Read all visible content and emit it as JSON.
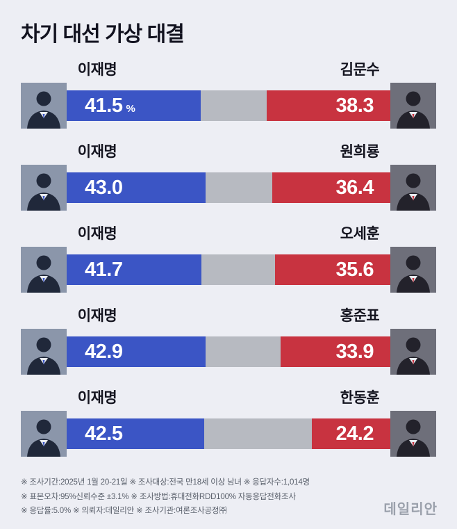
{
  "chart_data": {
    "type": "bar",
    "title": "차기 대선 가상 대결",
    "unit": "%",
    "legend_position": "none",
    "matchups": [
      {
        "left": {
          "name": "이재명",
          "value": 41.5,
          "label": "41.5",
          "unit": "%"
        },
        "right": {
          "name": "김문수",
          "value": 38.3,
          "label": "38.3"
        }
      },
      {
        "left": {
          "name": "이재명",
          "value": 43.0,
          "label": "43.0"
        },
        "right": {
          "name": "원희룡",
          "value": 36.4,
          "label": "36.4"
        }
      },
      {
        "left": {
          "name": "이재명",
          "value": 41.7,
          "label": "41.7"
        },
        "right": {
          "name": "오세훈",
          "value": 35.6,
          "label": "35.6"
        }
      },
      {
        "left": {
          "name": "이재명",
          "value": 42.9,
          "label": "42.9"
        },
        "right": {
          "name": "홍준표",
          "value": 33.9,
          "label": "33.9"
        }
      },
      {
        "left": {
          "name": "이재명",
          "value": 42.5,
          "label": "42.5"
        },
        "right": {
          "name": "한동훈",
          "value": 24.2,
          "label": "24.2"
        }
      }
    ],
    "colors": {
      "left_bar": "#3b55c5",
      "right_bar": "#c83340",
      "gap": "#b7bac1",
      "background": "#edeef4",
      "title_text": "#12121f",
      "value_text": "#ffffff"
    }
  },
  "icons": {
    "avatar_placeholder_left": "person-silhouette-blue-tie",
    "avatar_placeholder_right": "person-silhouette-red-tie"
  },
  "notes": [
    "※ 조사기간:2025년 1월 20-21일  ※ 조사대상:전국 만18세 이상 남녀  ※ 응답자수:1,014명",
    "※ 표본오차:95%신뢰수준 ±3.1%  ※ 조사방법:휴대전화RDD100% 자동응답전화조사",
    "※ 응답률:5.0%  ※ 의뢰자:데일리안  ※ 조사기관:여론조사공정㈜"
  ],
  "branding": {
    "logo_text": "데일리안"
  }
}
